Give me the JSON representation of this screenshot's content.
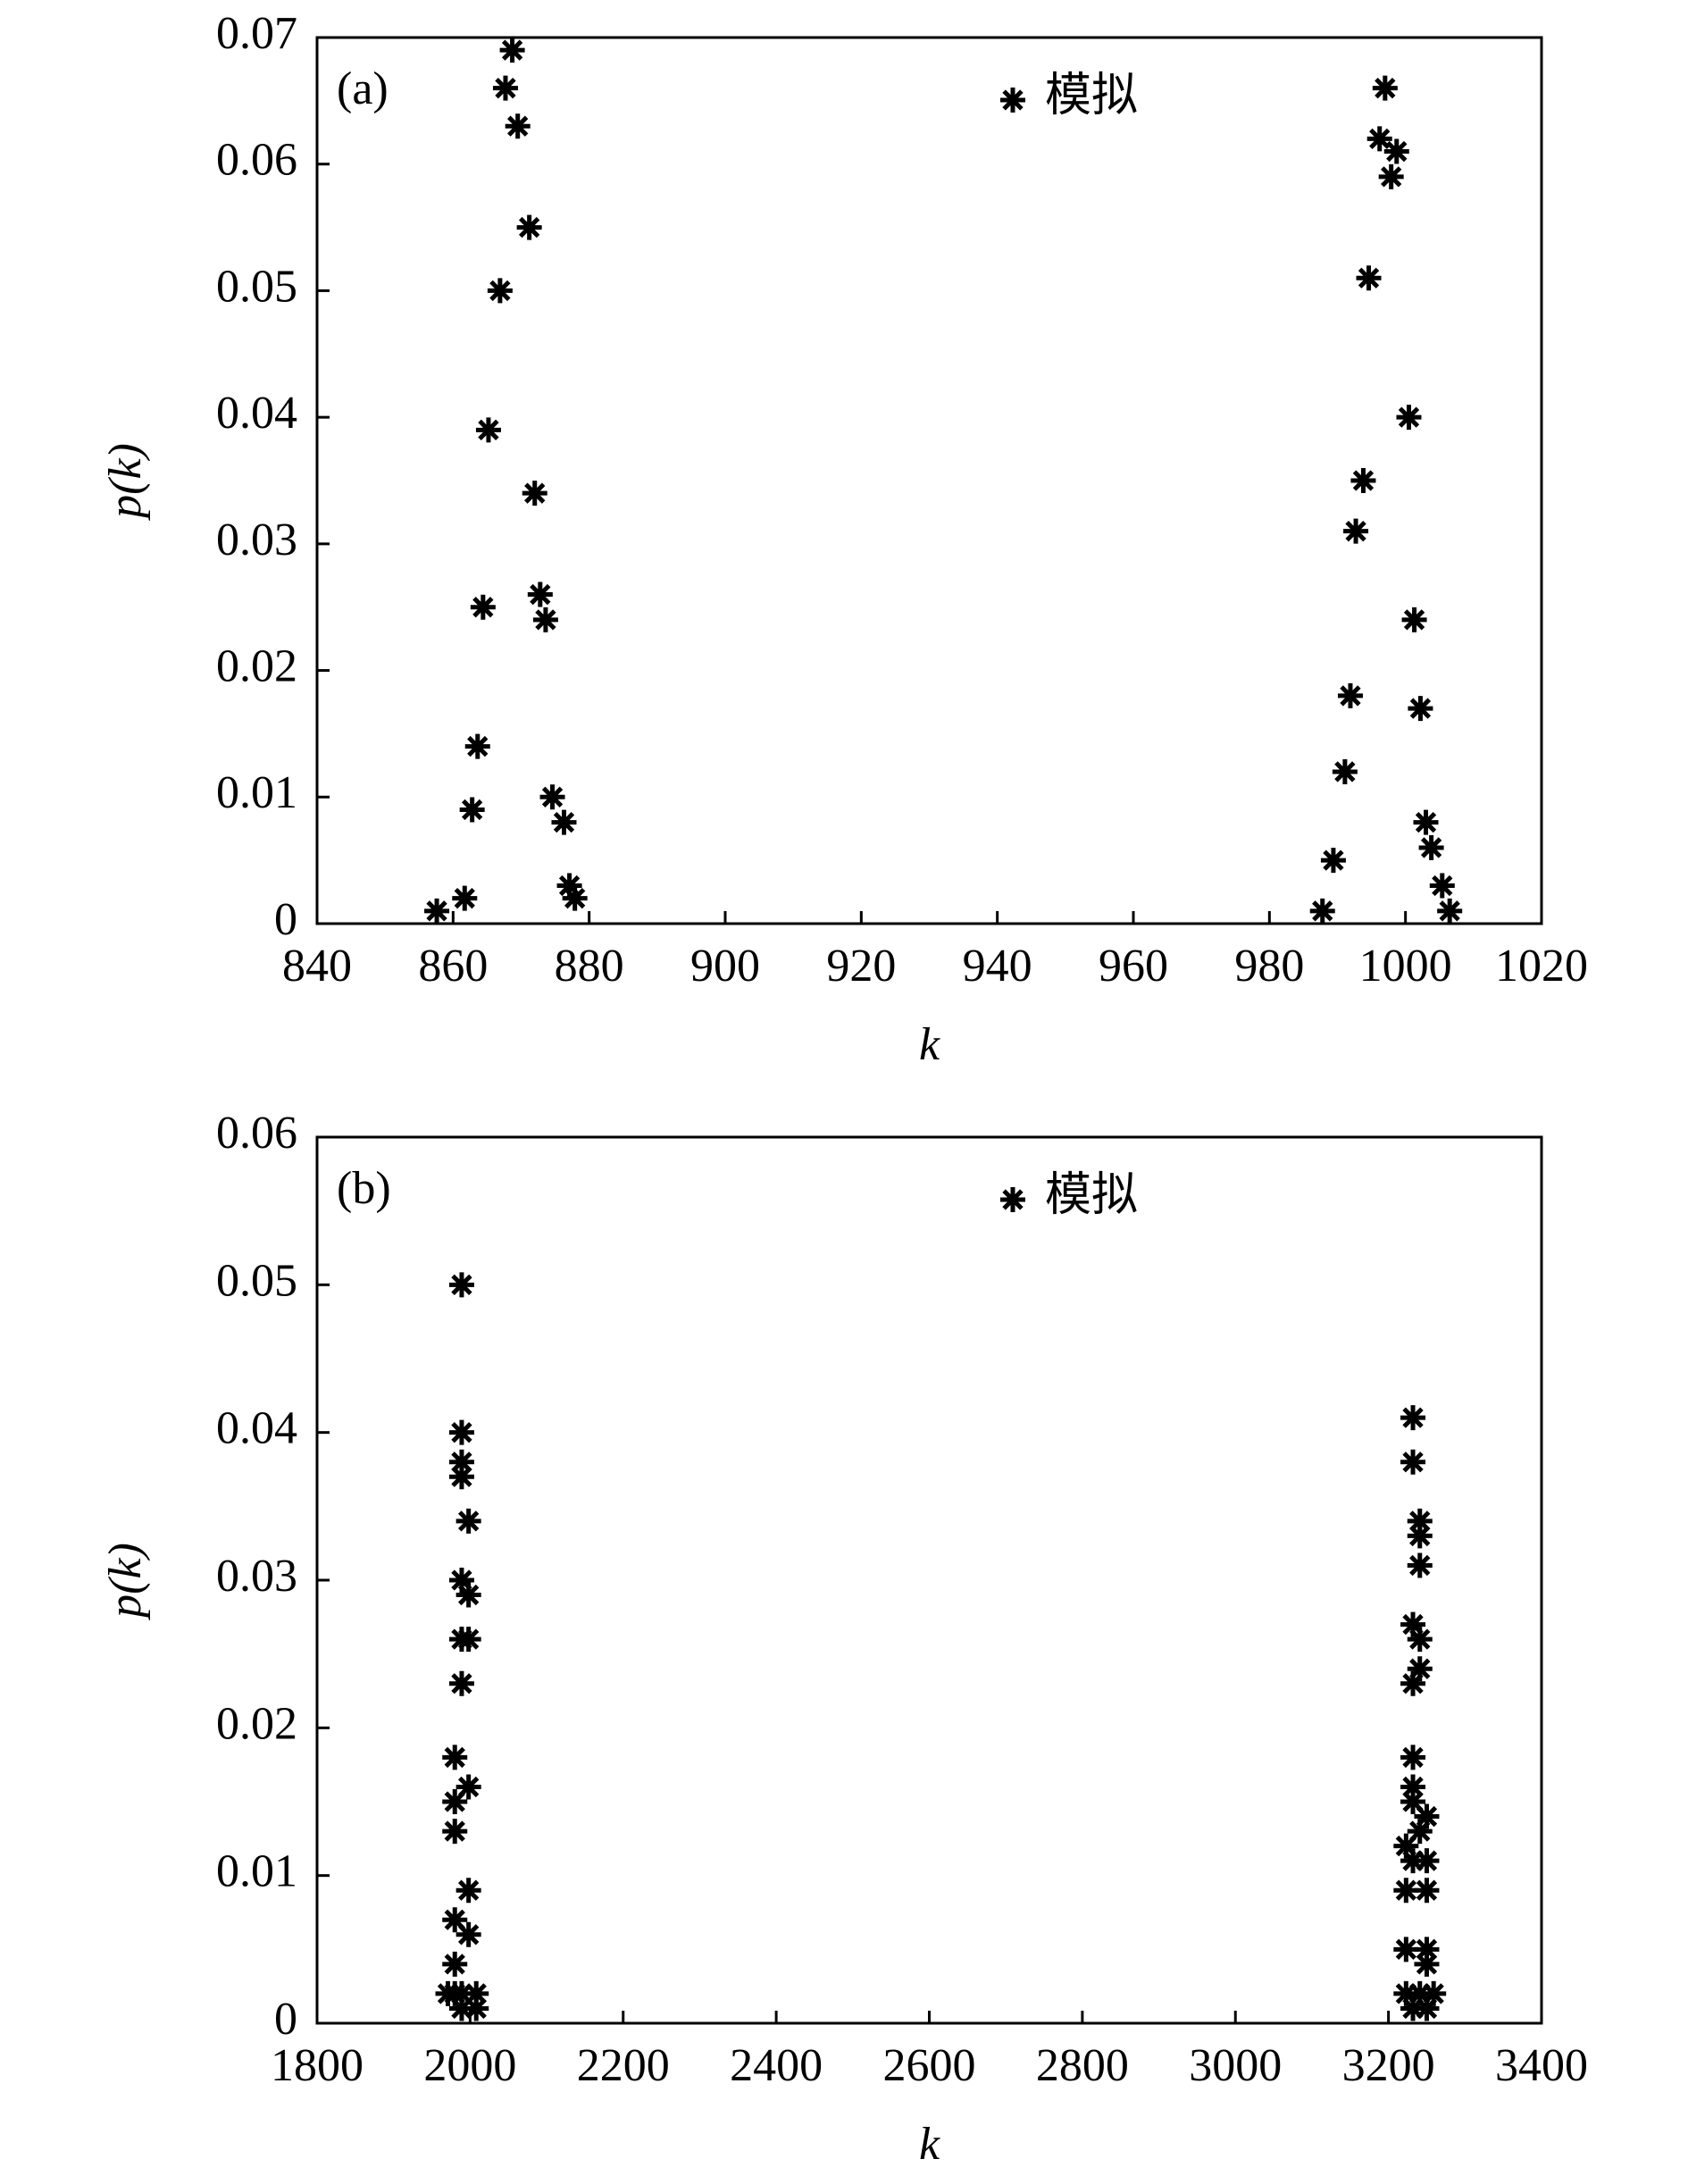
{
  "chart_data": [
    {
      "type": "scatter",
      "label": "(a)",
      "xlabel": "k",
      "ylabel": "p(k)",
      "xlim": [
        840,
        1020
      ],
      "xticks": [
        840,
        860,
        880,
        900,
        920,
        940,
        960,
        980,
        1000,
        1020
      ],
      "ylim": [
        0,
        0.07
      ],
      "yticks": [
        0,
        0.01,
        0.02,
        0.03,
        0.04,
        0.05,
        0.06,
        0.07
      ],
      "series": [
        {
          "name": "模拟",
          "color": "#000000",
          "x": [
            857.6,
            861.7,
            862.8,
            863.6,
            864.4,
            865.2,
            866.9,
            867.7,
            868.7,
            869.5,
            871.2,
            872,
            872.8,
            873.6,
            874.6,
            876.3,
            877.1,
            877.9,
            987.8,
            989.4,
            991.1,
            991.9,
            992.7,
            993.8,
            994.6,
            996.2,
            997,
            997.9,
            998.7,
            1000.5,
            1001.3,
            1002.2,
            1003,
            1003.8,
            1005.4,
            1006.5
          ],
          "values": [
            0.001,
            0.002,
            0.009,
            0.014,
            0.025,
            0.039,
            0.05,
            0.066,
            0.069,
            0.063,
            0.055,
            0.034,
            0.026,
            0.024,
            0.01,
            0.008,
            0.003,
            0.002,
            0.001,
            0.005,
            0.012,
            0.018,
            0.031,
            0.035,
            0.051,
            0.062,
            0.066,
            0.059,
            0.061,
            0.04,
            0.024,
            0.017,
            0.008,
            0.006,
            0.003,
            0.001
          ]
        }
      ]
    },
    {
      "type": "scatter",
      "label": "(b)",
      "xlabel": "k",
      "ylabel": "p(k)",
      "xlim": [
        1800,
        3400
      ],
      "xticks": [
        1800,
        2000,
        2200,
        2400,
        2600,
        2800,
        3000,
        3200,
        3400
      ],
      "ylim": [
        0,
        0.06
      ],
      "yticks": [
        0,
        0.01,
        0.02,
        0.03,
        0.04,
        0.05,
        0.06
      ],
      "series": [
        {
          "name": "模拟",
          "color": "#000000",
          "x": [
            1989,
            1989,
            1989,
            1989,
            1998,
            1989,
            1998,
            1989,
            1998,
            1989,
            1980,
            1998,
            1980,
            1980,
            1998,
            1980,
            1998,
            1980,
            1971,
            1980,
            1989,
            2008,
            1989,
            2008,
            3232,
            3232,
            3241,
            3241,
            3241,
            3232,
            3241,
            3241,
            3232,
            3232,
            3232,
            3250,
            3232,
            3241,
            3223,
            3232,
            3250,
            3223,
            3250,
            3223,
            3250,
            3250,
            3223,
            3241,
            3259,
            3232,
            3250
          ],
          "values": [
            0.05,
            0.04,
            0.038,
            0.037,
            0.034,
            0.03,
            0.029,
            0.026,
            0.026,
            0.023,
            0.018,
            0.016,
            0.015,
            0.013,
            0.009,
            0.007,
            0.006,
            0.004,
            0.002,
            0.002,
            0.002,
            0.002,
            0.001,
            0.001,
            0.041,
            0.038,
            0.034,
            0.033,
            0.031,
            0.027,
            0.026,
            0.024,
            0.023,
            0.018,
            0.016,
            0.014,
            0.015,
            0.013,
            0.012,
            0.011,
            0.011,
            0.009,
            0.009,
            0.005,
            0.005,
            0.004,
            0.002,
            0.002,
            0.002,
            0.001,
            0.001
          ]
        }
      ]
    }
  ]
}
